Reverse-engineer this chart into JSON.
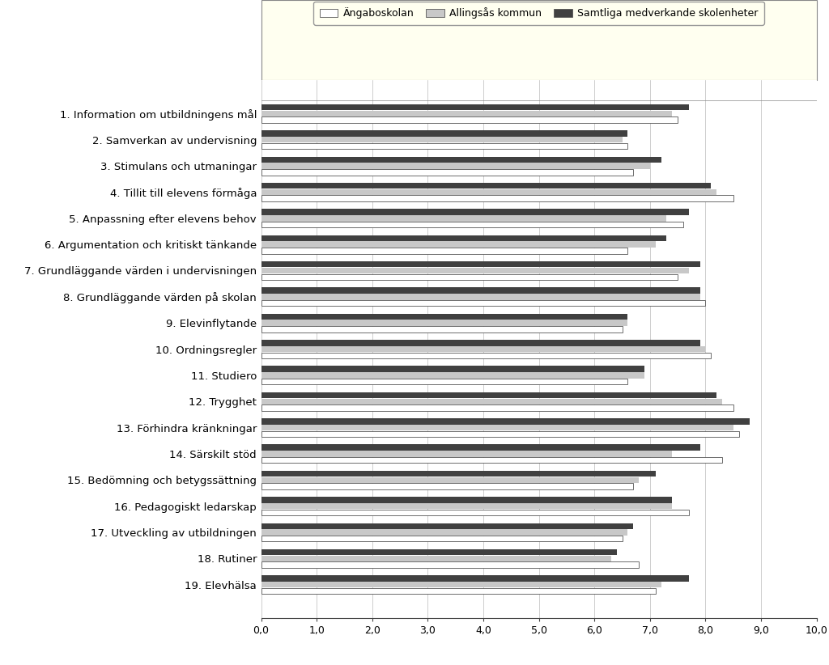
{
  "categories": [
    "1. Information om utbildningens mål",
    "2. Samverkan av undervisning",
    "3. Stimulans och utmaningar",
    "4. Tillit till elevens förmåga",
    "5. Anpassning efter elevens behov",
    "6. Argumentation och kritiskt tänkande",
    "7. Grundläggande värden i undervisningen",
    "8. Grundläggande värden på skolan",
    "9. Elevinflytande",
    "10. Ordningsregler",
    "11. Studiero",
    "12. Trygghet",
    "13. Förhindra kränkningar",
    "14. Särskilt stöd",
    "15. Bedömning och betygssättning",
    "16. Pedagogiskt ledarskap",
    "17. Utveckling av utbildningen",
    "18. Rutiner",
    "19. Elevhälsa"
  ],
  "angaboskolan": [
    7.5,
    6.6,
    6.7,
    8.5,
    7.6,
    6.6,
    7.5,
    8.0,
    6.5,
    8.1,
    6.6,
    8.5,
    8.6,
    8.3,
    6.7,
    7.7,
    6.5,
    6.8,
    7.1
  ],
  "alingsas": [
    7.4,
    6.5,
    7.0,
    8.2,
    7.3,
    7.1,
    7.7,
    7.9,
    6.6,
    8.0,
    6.9,
    8.3,
    8.5,
    7.4,
    6.8,
    7.4,
    6.6,
    6.3,
    7.2
  ],
  "samtliga": [
    7.7,
    6.6,
    7.2,
    8.1,
    7.7,
    7.3,
    7.9,
    7.9,
    6.6,
    7.9,
    6.9,
    8.2,
    8.8,
    7.9,
    7.1,
    7.4,
    6.7,
    6.4,
    7.7
  ],
  "color_angaboskolan": "#ffffff",
  "color_alingsas": "#c8c8c8",
  "color_samtliga": "#404040",
  "edge_color_light": "#555555",
  "edge_color_dark": "#404040",
  "bg_white": "#ffffff",
  "bg_yellow": "#fffff0",
  "xlim": [
    0,
    10
  ],
  "xticks": [
    0.0,
    1.0,
    2.0,
    3.0,
    4.0,
    5.0,
    6.0,
    7.0,
    8.0,
    9.0,
    10.0
  ],
  "xtick_labels": [
    "0,0",
    "1,0",
    "2,0",
    "3,0",
    "4,0",
    "5,0",
    "6,0",
    "7,0",
    "8,0",
    "9,0",
    "10,0"
  ],
  "legend_labels": [
    "Ängaboskolan",
    "Allingsås kommun",
    "Samtliga medverkande skolenheter"
  ],
  "bar_height": 0.24,
  "label_fontsize": 9.5,
  "tick_fontsize": 9,
  "legend_fontsize": 9
}
